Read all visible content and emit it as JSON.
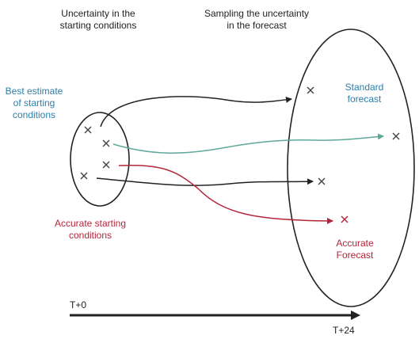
{
  "labels": {
    "uncertainty_start_line1": "Uncertainty in the",
    "uncertainty_start_line2": "starting conditions",
    "sampling_line1": "Sampling the uncertainty",
    "sampling_line2": "in the forecast",
    "best_estimate_line1": "Best estimate",
    "best_estimate_line2": "of starting",
    "best_estimate_line3": "conditions",
    "standard_forecast_line1": "Standard",
    "standard_forecast_line2": "forecast",
    "accurate_start_line1": "Accurate starting",
    "accurate_start_line2": "conditions",
    "accurate_forecast_line1": "Accurate",
    "accurate_forecast_line2": "Forecast",
    "time_start": "T+0",
    "time_end": "T+24"
  },
  "colors": {
    "dark": "#222222",
    "teal_text": "#2a7fa8",
    "teal_line": "#5fa89a",
    "red": "#b3263a",
    "marker": "#444444"
  }
}
